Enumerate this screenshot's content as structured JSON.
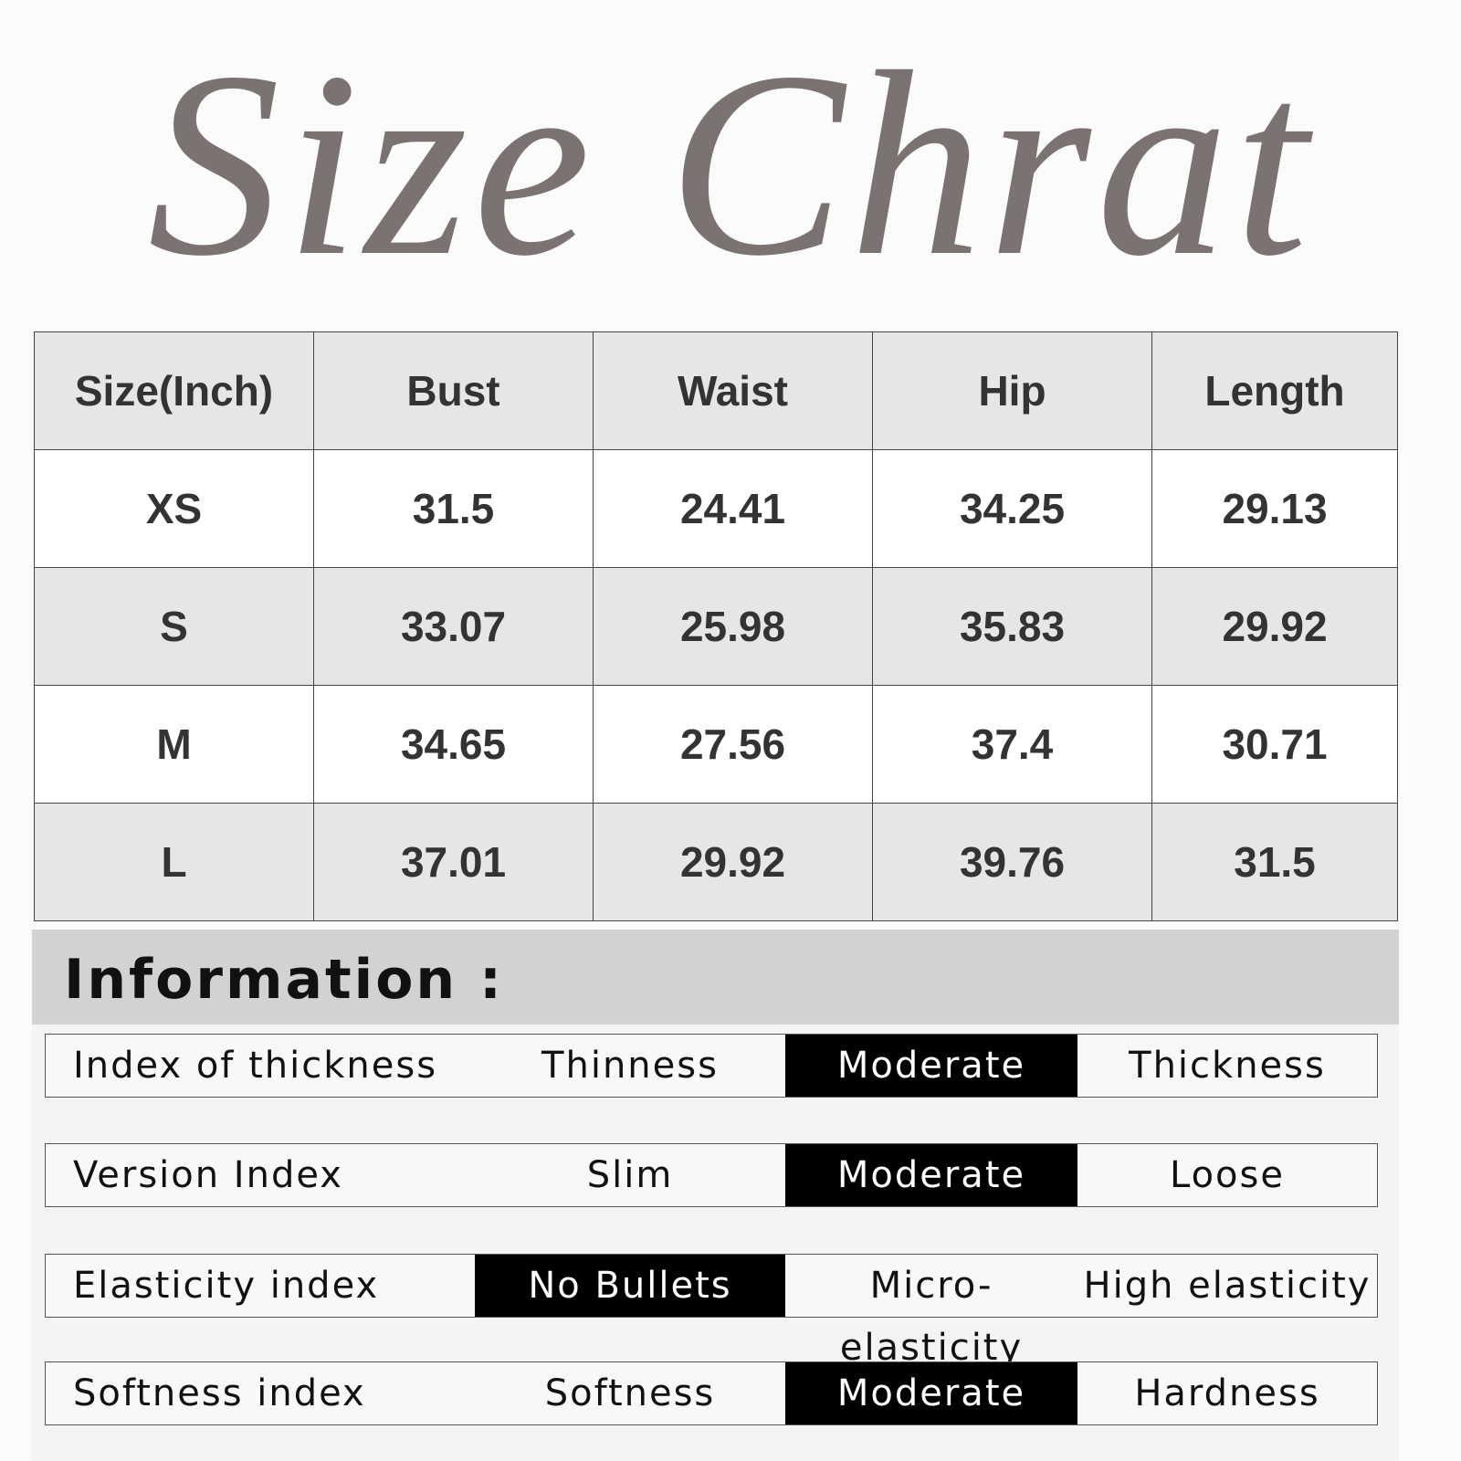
{
  "header": {
    "title": "Size Chrat"
  },
  "table": {
    "columns": [
      "Size(Inch)",
      "Bust",
      "Waist",
      "Hip",
      "Length"
    ],
    "rows": [
      [
        "XS",
        "31.5",
        "24.41",
        "34.25",
        "29.13"
      ],
      [
        "S",
        "33.07",
        "25.98",
        "35.83",
        "29.92"
      ],
      [
        "M",
        "34.65",
        "27.56",
        "37.4",
        "30.71"
      ],
      [
        "L",
        "37.01",
        "29.92",
        "39.76",
        "31.5"
      ]
    ]
  },
  "information": {
    "title": "Information :",
    "rows": [
      {
        "label": "Index of thickness",
        "options": [
          "Thinness",
          "Moderate",
          "Thickness"
        ],
        "selected": 1
      },
      {
        "label": "Version Index",
        "options": [
          "Slim",
          "Moderate",
          "Loose"
        ],
        "selected": 1
      },
      {
        "label": "Elasticity index",
        "options": [
          "No Bullets",
          "Micro-elasticity",
          "High elasticity"
        ],
        "selected": 0
      },
      {
        "label": "Softness index",
        "options": [
          "Softness",
          "Moderate",
          "Hardness"
        ],
        "selected": 1
      }
    ]
  }
}
